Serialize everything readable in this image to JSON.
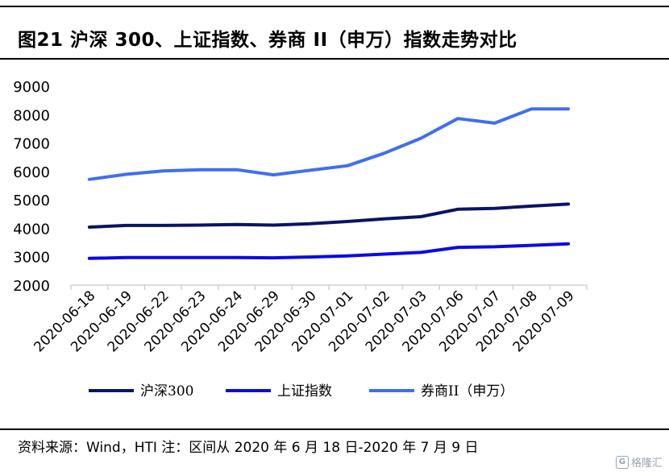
{
  "title": "图21 沪深 300、上证指数、券商 II（申万）指数走势对比",
  "source": "资料来源：Wind，HTI 注：区间从 2020 年 6 月 18 日-2020 年 7 月 9 日",
  "watermark": "格隆汇",
  "colors": {
    "series1": "#0a1464",
    "series2": "#0a0ae6",
    "series3": "#3f6ff0",
    "axis": "#d0d0d0",
    "rule": "#000000"
  },
  "chart_data": {
    "type": "line",
    "categories": [
      "2020-06-18",
      "2020-06-19",
      "2020-06-22",
      "2020-06-23",
      "2020-06-24",
      "2020-06-29",
      "2020-06-30",
      "2020-07-01",
      "2020-07-02",
      "2020-07-03",
      "2020-07-06",
      "2020-07-07",
      "2020-07-08",
      "2020-07-09"
    ],
    "ylim": [
      2000,
      9000
    ],
    "yticks": [
      "9000",
      "8000",
      "7000",
      "6000",
      "5000",
      "4000",
      "3000",
      "2000"
    ],
    "grid": false,
    "legend_position": "bottom",
    "series": [
      {
        "name": "沪深300",
        "color": "#0a1464",
        "values": [
          4040,
          4100,
          4100,
          4110,
          4130,
          4110,
          4160,
          4240,
          4330,
          4410,
          4670,
          4700,
          4780,
          4850
        ]
      },
      {
        "name": "上证指数",
        "color": "#0a0ae6",
        "values": [
          2940,
          2970,
          2970,
          2970,
          2970,
          2960,
          2990,
          3030,
          3090,
          3150,
          3330,
          3350,
          3400,
          3450
        ]
      },
      {
        "name": "券商II（申万）",
        "color": "#3f6ff0",
        "values": [
          5720,
          5900,
          6020,
          6060,
          6060,
          5880,
          6040,
          6200,
          6640,
          7170,
          7860,
          7700,
          8200,
          8200
        ]
      }
    ]
  }
}
